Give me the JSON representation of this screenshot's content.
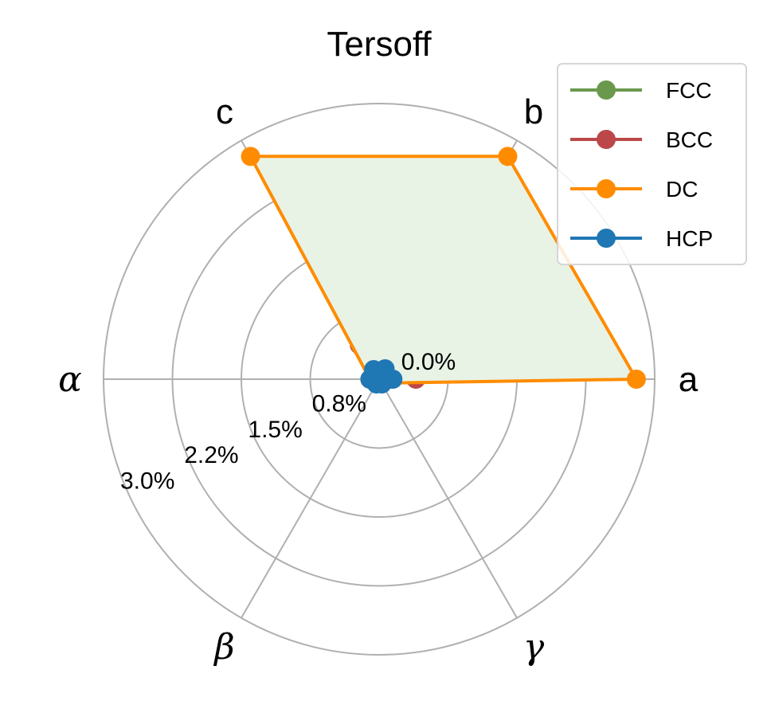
{
  "chart_data": {
    "type": "radar",
    "title": "Tersoff",
    "axes": [
      "a",
      "b",
      "c",
      "α",
      "β",
      "γ"
    ],
    "radial_ticks": [
      "0.0%",
      "0.8%",
      "1.5%",
      "2.2%",
      "3.0%"
    ],
    "radial_tick_values": [
      0.0,
      0.75,
      1.5,
      2.25,
      3.0
    ],
    "rmax": 3.0,
    "grid": true,
    "legend_position": "top-right",
    "series": [
      {
        "name": "FCC",
        "color": "#6a994e",
        "values": [
          0.12,
          0.12,
          0.12,
          0.08,
          0.05,
          0.05
        ],
        "fill": false
      },
      {
        "name": "BCC",
        "color": "#bc4749",
        "values": [
          0.4,
          0.32,
          0.43,
          0.1,
          0.05,
          0.05
        ],
        "fill": false
      },
      {
        "name": "DC",
        "color": "#ff8c00",
        "values": [
          2.8,
          2.8,
          2.8,
          0.1,
          0.05,
          0.05
        ],
        "fill": true,
        "fill_color": "#e8f3e6"
      },
      {
        "name": "HCP",
        "color": "#1f77b4",
        "values": [
          0.15,
          0.13,
          0.12,
          0.1,
          0.06,
          0.06
        ],
        "fill": false
      }
    ]
  }
}
